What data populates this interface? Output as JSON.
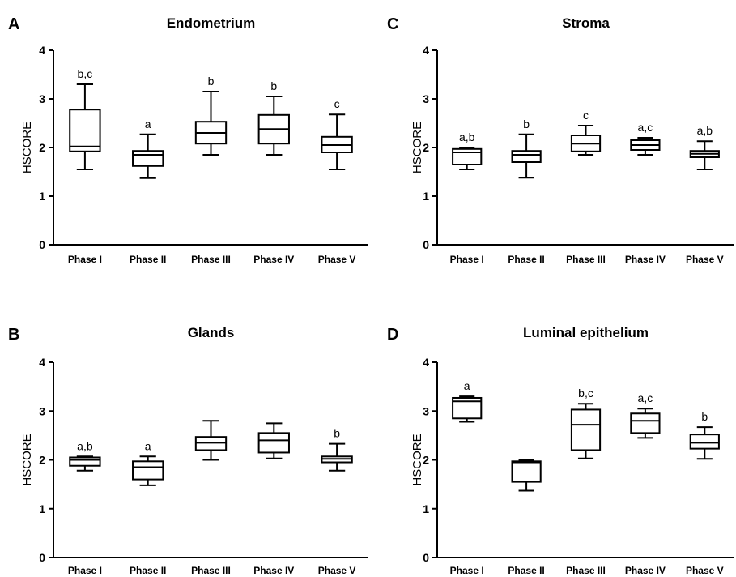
{
  "chart_data": [
    {
      "panel": "A",
      "title": "Endometrium",
      "type": "boxplot",
      "ylabel": "HSCORE",
      "ylim": [
        0,
        4
      ],
      "yticks": [
        "0",
        "1",
        "2",
        "3",
        "4"
      ],
      "categories": [
        "Phase I",
        "Phase II",
        "Phase III",
        "Phase IV",
        "Phase V"
      ],
      "boxes": [
        {
          "min": 1.55,
          "q1": 1.92,
          "median": 2.02,
          "q3": 2.78,
          "max": 3.3,
          "label": "b,c"
        },
        {
          "min": 1.37,
          "q1": 1.62,
          "median": 1.85,
          "q3": 1.93,
          "max": 2.27,
          "label": "a"
        },
        {
          "min": 1.85,
          "q1": 2.08,
          "median": 2.3,
          "q3": 2.53,
          "max": 3.15,
          "label": "b"
        },
        {
          "min": 1.85,
          "q1": 2.08,
          "median": 2.38,
          "q3": 2.67,
          "max": 3.05,
          "label": "b"
        },
        {
          "min": 1.55,
          "q1": 1.9,
          "median": 2.05,
          "q3": 2.22,
          "max": 2.68,
          "label": "c"
        }
      ]
    },
    {
      "panel": "C",
      "title": "Stroma",
      "type": "boxplot",
      "ylabel": "HSCORE",
      "ylim": [
        0,
        4
      ],
      "yticks": [
        "0",
        "1",
        "2",
        "3",
        "4"
      ],
      "categories": [
        "Phase I",
        "Phase II",
        "Phase III",
        "Phase IV",
        "Phase V"
      ],
      "boxes": [
        {
          "min": 1.55,
          "q1": 1.65,
          "median": 1.9,
          "q3": 1.97,
          "max": 2.0,
          "label": "a,b"
        },
        {
          "min": 1.38,
          "q1": 1.7,
          "median": 1.85,
          "q3": 1.93,
          "max": 2.27,
          "label": "b"
        },
        {
          "min": 1.85,
          "q1": 1.92,
          "median": 2.08,
          "q3": 2.25,
          "max": 2.45,
          "label": "c"
        },
        {
          "min": 1.85,
          "q1": 1.95,
          "median": 2.05,
          "q3": 2.15,
          "max": 2.2,
          "label": "a,c"
        },
        {
          "min": 1.55,
          "q1": 1.8,
          "median": 1.87,
          "q3": 1.93,
          "max": 2.13,
          "label": "a,b"
        }
      ]
    },
    {
      "panel": "B",
      "title": "Glands",
      "type": "boxplot",
      "ylabel": "HSCORE",
      "ylim": [
        0,
        4
      ],
      "yticks": [
        "0",
        "1",
        "2",
        "3",
        "4"
      ],
      "categories": [
        "Phase I",
        "Phase II",
        "Phase III",
        "Phase IV",
        "Phase V"
      ],
      "boxes": [
        {
          "min": 1.78,
          "q1": 1.88,
          "median": 2.0,
          "q3": 2.05,
          "max": 2.07,
          "label": "a,b"
        },
        {
          "min": 1.48,
          "q1": 1.6,
          "median": 1.85,
          "q3": 1.97,
          "max": 2.07,
          "label": "a"
        },
        {
          "min": 2.0,
          "q1": 2.2,
          "median": 2.35,
          "q3": 2.47,
          "max": 2.8,
          "label": ""
        },
        {
          "min": 2.03,
          "q1": 2.15,
          "median": 2.4,
          "q3": 2.55,
          "max": 2.75,
          "label": ""
        },
        {
          "min": 1.78,
          "q1": 1.95,
          "median": 2.02,
          "q3": 2.07,
          "max": 2.33,
          "label": "b"
        }
      ]
    },
    {
      "panel": "D",
      "title": "Luminal epithelium",
      "type": "boxplot",
      "ylabel": "HSCORE",
      "ylim": [
        0,
        4
      ],
      "yticks": [
        "0",
        "1",
        "2",
        "3",
        "4"
      ],
      "categories": [
        "Phase I",
        "Phase II",
        "Phase III",
        "Phase IV",
        "Phase V"
      ],
      "boxes": [
        {
          "min": 2.78,
          "q1": 2.85,
          "median": 3.2,
          "q3": 3.27,
          "max": 3.3,
          "label": "a"
        },
        {
          "min": 1.37,
          "q1": 1.55,
          "median": 1.95,
          "q3": 1.97,
          "max": 2.0,
          "label": ""
        },
        {
          "min": 2.03,
          "q1": 2.2,
          "median": 2.72,
          "q3": 3.03,
          "max": 3.15,
          "label": "b,c"
        },
        {
          "min": 2.45,
          "q1": 2.55,
          "median": 2.8,
          "q3": 2.95,
          "max": 3.05,
          "label": "a,c"
        },
        {
          "min": 2.02,
          "q1": 2.23,
          "median": 2.35,
          "q3": 2.52,
          "max": 2.67,
          "label": "b"
        }
      ]
    }
  ]
}
